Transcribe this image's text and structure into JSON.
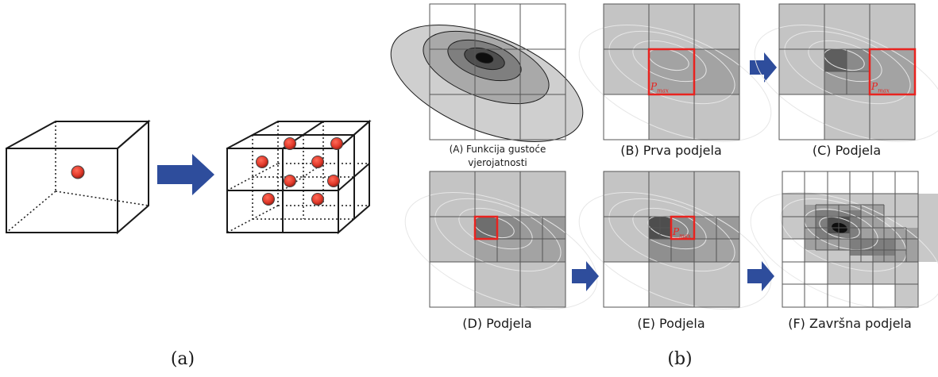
{
  "figure": {
    "sub_labels": {
      "a": "(a)",
      "b": "(b)"
    }
  },
  "panels": [
    {
      "id": "A",
      "caption_line1": "(A) Funkcija gustoće",
      "caption_line2": "vjerojatnosti"
    },
    {
      "id": "B",
      "caption": "(B) Prva podjela",
      "marker": "P",
      "marker_sub": "max"
    },
    {
      "id": "C",
      "caption": "(C) Podjela",
      "marker": "P",
      "marker_sub": "max"
    },
    {
      "id": "D",
      "caption": "(D) Podjela"
    },
    {
      "id": "E",
      "caption": "(E) Podjela",
      "marker": "P",
      "marker_sub": "max"
    },
    {
      "id": "F",
      "caption": "(F) Završna podjela"
    }
  ],
  "colors": {
    "arrow": "#2e4d9c",
    "dot": "#e23a2b",
    "highlight": "#e8231f",
    "cell_light": "#c4c4c4",
    "cell_mid": "#a3a3a3",
    "cell_dark": "#7a7a7a"
  }
}
